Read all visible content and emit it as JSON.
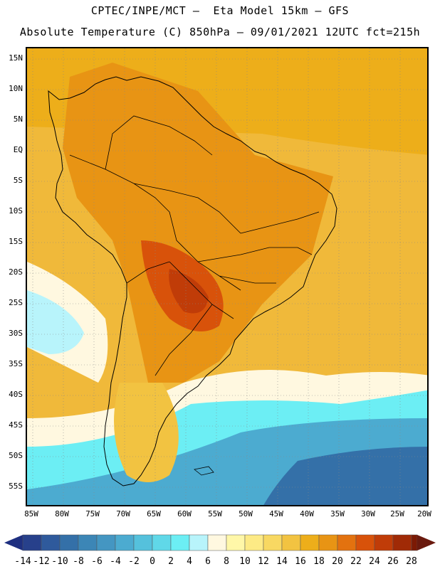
{
  "header": {
    "line1": "CPTEC/INPE/MCT –  Eta Model 15km – GFS",
    "line2": "Absolute Temperature (C) 850hPa – 09/01/2021 12UTC fct=215h"
  },
  "axes": {
    "lat_labels": [
      "15N",
      "10N",
      "5N",
      "EQ",
      "5S",
      "10S",
      "15S",
      "20S",
      "25S",
      "30S",
      "35S",
      "40S",
      "45S",
      "50S",
      "55S"
    ],
    "lon_labels": [
      "85W",
      "80W",
      "75W",
      "70W",
      "65W",
      "60W",
      "55W",
      "50W",
      "45W",
      "40W",
      "35W",
      "30W",
      "25W",
      "20W"
    ]
  },
  "colorbar": {
    "labels": [
      "-14",
      "-12",
      "-10",
      "-8",
      "-6",
      "-4",
      "-2",
      "0",
      "2",
      "4",
      "6",
      "8",
      "10",
      "12",
      "14",
      "16",
      "18",
      "20",
      "22",
      "24",
      "26",
      "28"
    ],
    "colors": [
      "#27408b",
      "#2f5a9c",
      "#3470a8",
      "#3c86b6",
      "#4496c2",
      "#4cabd0",
      "#55c1dc",
      "#60d8e8",
      "#6ceef4",
      "#b8f4fb",
      "#fff8e0",
      "#fff7a8",
      "#fdea85",
      "#f8d862",
      "#f2c341",
      "#edae1a",
      "#e89414",
      "#e3720f",
      "#d8520a",
      "#c03c08",
      "#a02a06",
      "#7c1a04"
    ],
    "end_low_color": "#1e2f80",
    "end_high_color": "#6a1a0e"
  },
  "map": {
    "background_color": "#f2b936",
    "land_outline_color": "#000000",
    "grid_color": "#888888"
  }
}
